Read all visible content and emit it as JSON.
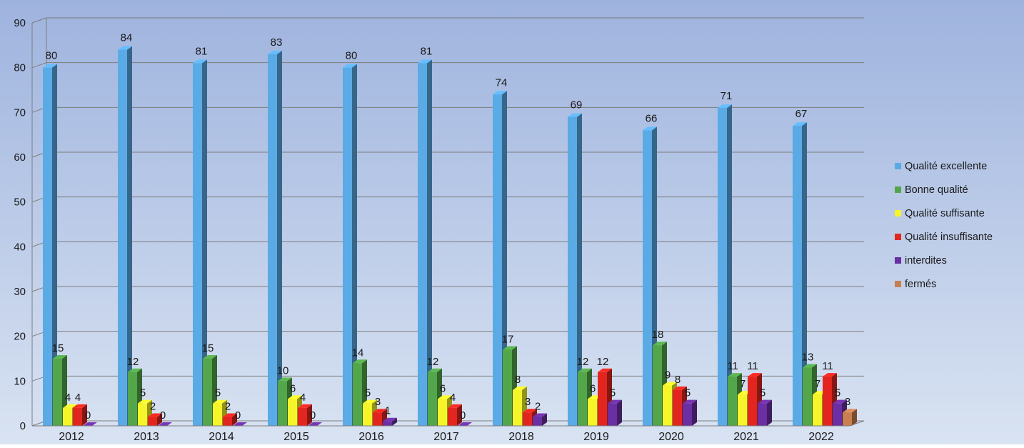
{
  "chart_data": {
    "type": "bar",
    "categories": [
      "2012",
      "2013",
      "2014",
      "2015",
      "2016",
      "2017",
      "2018",
      "2019",
      "2020",
      "2021",
      "2022"
    ],
    "series": [
      {
        "name": "Qualité excellente",
        "color": "#5aaae6",
        "values": [
          80,
          84,
          81,
          83,
          80,
          81,
          74,
          69,
          66,
          71,
          67
        ]
      },
      {
        "name": "Bonne qualité",
        "color": "#53a64a",
        "values": [
          15,
          12,
          15,
          10,
          14,
          12,
          17,
          12,
          18,
          11,
          13
        ]
      },
      {
        "name": "Qualité suffisante",
        "color": "#f5f52a",
        "values": [
          4,
          5,
          5,
          6,
          5,
          6,
          8,
          6,
          9,
          7,
          7
        ]
      },
      {
        "name": "Qualité insuffisante",
        "color": "#e2261f",
        "values": [
          4,
          2,
          2,
          4,
          3,
          4,
          3,
          12,
          8,
          11,
          11
        ]
      },
      {
        "name": "interdites",
        "color": "#6a2fa2",
        "values": [
          0,
          0,
          0,
          0,
          1,
          0,
          2,
          5,
          5,
          5,
          5
        ]
      },
      {
        "name": "fermés",
        "color": "#c98050",
        "values": [
          null,
          null,
          null,
          null,
          null,
          null,
          null,
          null,
          null,
          null,
          3
        ]
      }
    ],
    "yticks": [
      0,
      10,
      20,
      30,
      40,
      50,
      60,
      70,
      80,
      90
    ],
    "ylim": [
      0,
      90
    ],
    "grid": true,
    "legend_position": "right",
    "title": "",
    "xlabel": "",
    "ylabel": ""
  }
}
